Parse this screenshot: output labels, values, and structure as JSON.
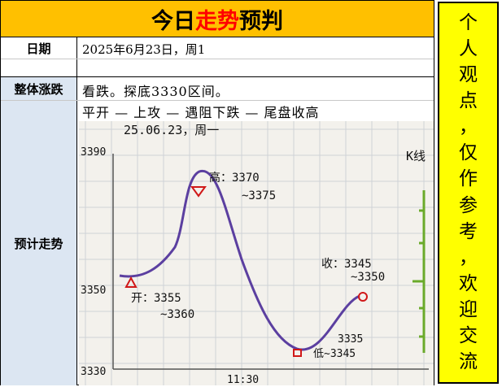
{
  "title": {
    "part1": "今日",
    "highlight": "走势",
    "part2": "预判"
  },
  "date_row": {
    "label": "日期",
    "value": "2025年6月23日，周1"
  },
  "overall": {
    "label": "整体涨跌",
    "value": "看跌。探底3330区间。"
  },
  "forecast": {
    "label": "预计走势",
    "path": "平开 — 上攻 — 遇阻下跌 — 尾盘收高"
  },
  "sketch": {
    "date_note": "25.06.23，周一",
    "y_ticks": [
      "3390",
      "3350",
      "3330"
    ],
    "x_tick": "11:30",
    "right_top": "K线",
    "open_label": "开：3355",
    "open_label2": "~3360",
    "high_label": "高：3370",
    "high_label2": "~3375",
    "low_top": "3335",
    "low_label": "低~3345",
    "close_label": "收：3345",
    "close_label2": "~3350",
    "colors": {
      "curve": "#5b3fa0",
      "marker": "#d01818",
      "bar": "#6aaa2a"
    }
  },
  "side_note": [
    "个",
    "人",
    "观",
    "点",
    "，",
    "仅",
    "作",
    "参",
    "考",
    "，",
    "欢",
    "迎",
    "交",
    "流"
  ]
}
